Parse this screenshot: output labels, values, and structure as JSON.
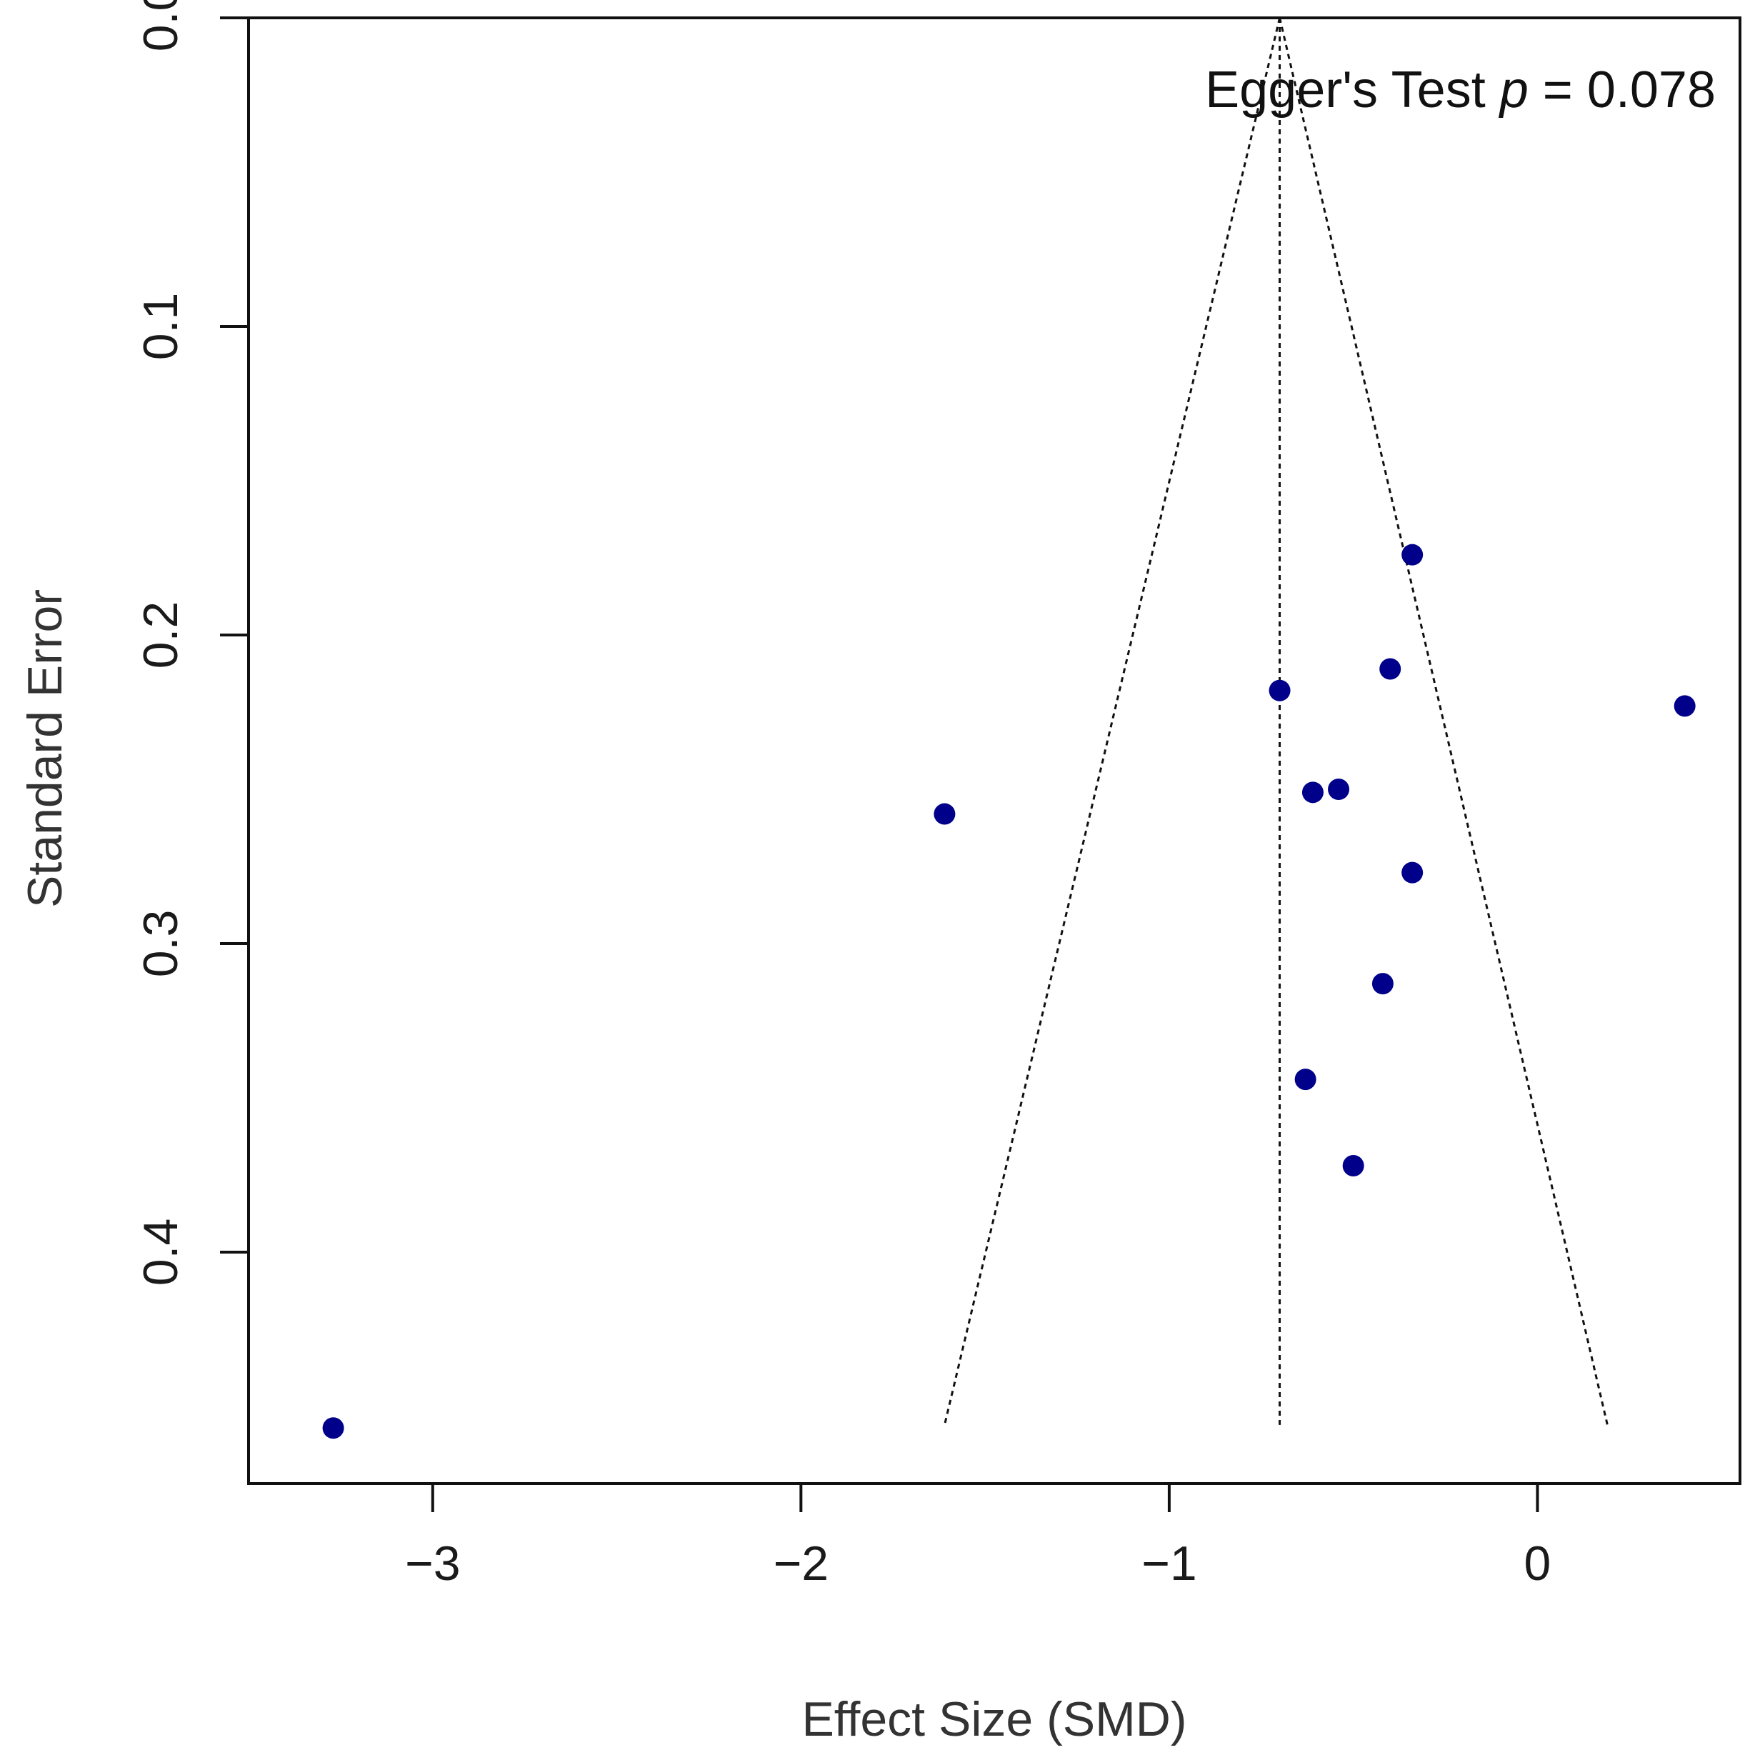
{
  "chart_data": {
    "type": "scatter",
    "title": "",
    "xlabel": "Effect Size (SMD)",
    "ylabel": "Standard Error",
    "xlim": [
      -3.5,
      0.55
    ],
    "ylim": [
      0.0,
      0.475
    ],
    "y_reversed": true,
    "x_ticks": [
      -3,
      -2,
      -1,
      0
    ],
    "x_tick_labels": [
      "−3",
      "−2",
      "−1",
      "0"
    ],
    "y_ticks": [
      0.0,
      0.1,
      0.2,
      0.3,
      0.4
    ],
    "y_tick_labels": [
      "0.0",
      "0.1",
      "0.2",
      "0.3",
      "0.4"
    ],
    "grid": false,
    "annotation": {
      "prefix": "Egger's Test ",
      "p_symbol": "p",
      "suffix": " = 0.078"
    },
    "funnel": {
      "center": -0.7,
      "apex_se": 0.0,
      "max_se": 0.456,
      "lower_at_max": -1.61,
      "upper_at_max": 0.19
    },
    "point_color": "#00008B",
    "points": [
      {
        "x": -0.34,
        "y": 0.174
      },
      {
        "x": -0.4,
        "y": 0.211
      },
      {
        "x": -0.7,
        "y": 0.218
      },
      {
        "x": 0.4,
        "y": 0.223
      },
      {
        "x": -0.61,
        "y": 0.251
      },
      {
        "x": -0.54,
        "y": 0.25
      },
      {
        "x": -1.61,
        "y": 0.258
      },
      {
        "x": -0.34,
        "y": 0.277
      },
      {
        "x": -0.42,
        "y": 0.313
      },
      {
        "x": -0.63,
        "y": 0.344
      },
      {
        "x": -0.5,
        "y": 0.372
      },
      {
        "x": -3.27,
        "y": 0.457
      }
    ]
  }
}
